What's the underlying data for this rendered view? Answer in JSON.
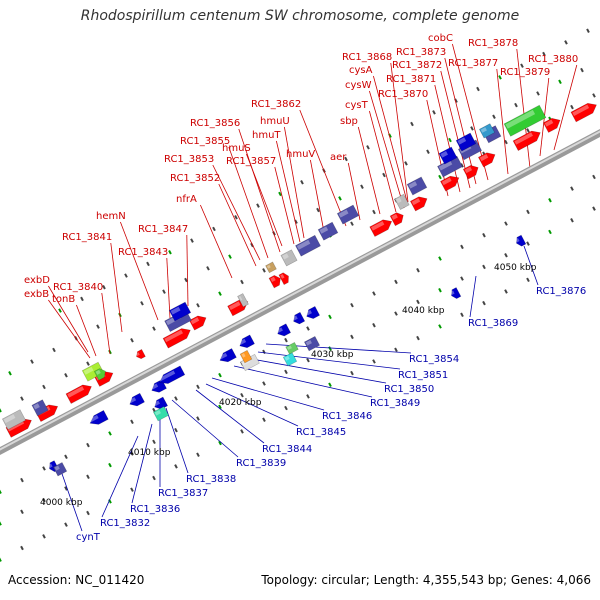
{
  "title": "Rhodospirillum centenum SW chromosome, complete genome",
  "accession": "Accession: NC_011420",
  "info": "Topology: circular; Length: 4,355,543 bp; Genes: 4,066",
  "colors": {
    "forward_label": "#cc0000",
    "reverse_label": "#0000aa",
    "axis": "#999999",
    "red_gene": "#ff0000",
    "blue_gene": "#0000cc",
    "indigo_gene": "#4b4ba6",
    "green_gene": "#33cc33",
    "grey_gene": "#bbbbbb",
    "tick_green": "#009900"
  },
  "kbp_labels": [
    {
      "text": "4000 kbp"
    },
    {
      "text": "4010 kbp"
    },
    {
      "text": "4020 kbp"
    },
    {
      "text": "4030 kbp"
    },
    {
      "text": "4040 kbp"
    },
    {
      "text": "4050 kbp"
    }
  ],
  "top_labels": [
    {
      "text": "exbD"
    },
    {
      "text": "exbB"
    },
    {
      "text": "RC1_3840"
    },
    {
      "text": "tonB"
    },
    {
      "text": "RC1_3841"
    },
    {
      "text": "hemN"
    },
    {
      "text": "RC1_3843"
    },
    {
      "text": "RC1_3847"
    },
    {
      "text": "nfrA"
    },
    {
      "text": "RC1_3852"
    },
    {
      "text": "RC1_3853"
    },
    {
      "text": "RC1_3855"
    },
    {
      "text": "RC1_3856"
    },
    {
      "text": "hmuS"
    },
    {
      "text": "RC1_3857"
    },
    {
      "text": "hmuT"
    },
    {
      "text": "hmuU"
    },
    {
      "text": "hmuV"
    },
    {
      "text": "RC1_3862"
    },
    {
      "text": "aer"
    },
    {
      "text": "sbp"
    },
    {
      "text": "cysT"
    },
    {
      "text": "cysW"
    },
    {
      "text": "cysA"
    },
    {
      "text": "RC1_3868"
    },
    {
      "text": "RC1_3870"
    },
    {
      "text": "RC1_3871"
    },
    {
      "text": "RC1_3872"
    },
    {
      "text": "RC1_3873"
    },
    {
      "text": "cobC"
    },
    {
      "text": "RC1_3877"
    },
    {
      "text": "RC1_3878"
    },
    {
      "text": "RC1_3879"
    },
    {
      "text": "RC1_3880"
    }
  ],
  "bottom_labels": [
    {
      "text": "RC1_3854"
    },
    {
      "text": "RC1_3851"
    },
    {
      "text": "RC1_3850"
    },
    {
      "text": "RC1_3849"
    },
    {
      "text": "RC1_3846"
    },
    {
      "text": "RC1_3845"
    },
    {
      "text": "RC1_3844"
    },
    {
      "text": "RC1_3839"
    },
    {
      "text": "RC1_3838"
    },
    {
      "text": "RC1_3837"
    },
    {
      "text": "RC1_3836"
    },
    {
      "text": "RC1_3832"
    },
    {
      "text": "cynT"
    },
    {
      "text": "RC1_3869"
    },
    {
      "text": "RC1_3876"
    }
  ]
}
